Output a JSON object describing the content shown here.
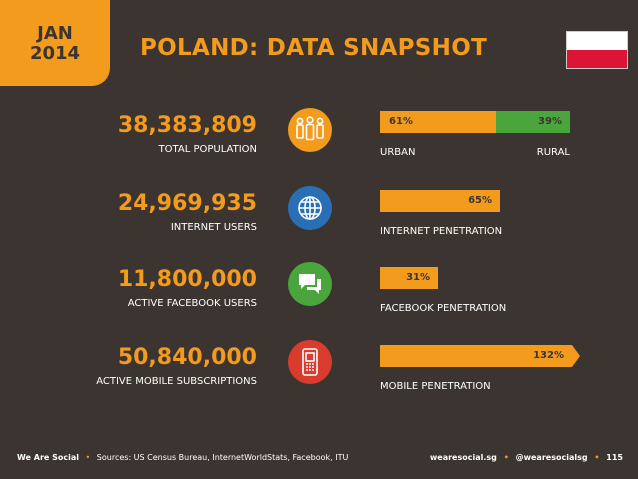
{
  "header": {
    "month": "JAN",
    "year": "2014",
    "title": "POLAND: DATA SNAPSHOT"
  },
  "colors": {
    "background": "#3b3431",
    "accent": "#f29b1d",
    "rural_green": "#4aa53c",
    "icon_blue": "#2a6fb5",
    "icon_green": "#4aa53c",
    "icon_red": "#d93c2f"
  },
  "rows": [
    {
      "value": "38,383,809",
      "label": "TOTAL POPULATION",
      "icon": "people-icon",
      "bar": {
        "segments": [
          {
            "label": "61%",
            "percent": 61
          },
          {
            "label": "39%",
            "percent": 39
          }
        ],
        "left_label": "URBAN",
        "right_label": "RURAL"
      }
    },
    {
      "value": "24,969,935",
      "label": "INTERNET USERS",
      "icon": "globe-icon",
      "bar": {
        "label": "65%",
        "percent": 65,
        "caption": "INTERNET PENETRATION"
      }
    },
    {
      "value": "11,800,000",
      "label": "ACTIVE FACEBOOK USERS",
      "icon": "chat-icon",
      "bar": {
        "label": "31%",
        "percent": 31,
        "caption": "FACEBOOK PENETRATION"
      }
    },
    {
      "value": "50,840,000",
      "label": "ACTIVE MOBILE SUBSCRIPTIONS",
      "icon": "mobile-phone-icon",
      "bar": {
        "label": "132%",
        "percent": 132,
        "caption": "MOBILE PENETRATION"
      }
    }
  ],
  "footer": {
    "brand": "We Are Social",
    "sources": "Sources: US Census Bureau, InternetWorldStats, Facebook, ITU",
    "website": "wearesocial.sg",
    "twitter": "@wearesocialsg",
    "page": "115"
  }
}
